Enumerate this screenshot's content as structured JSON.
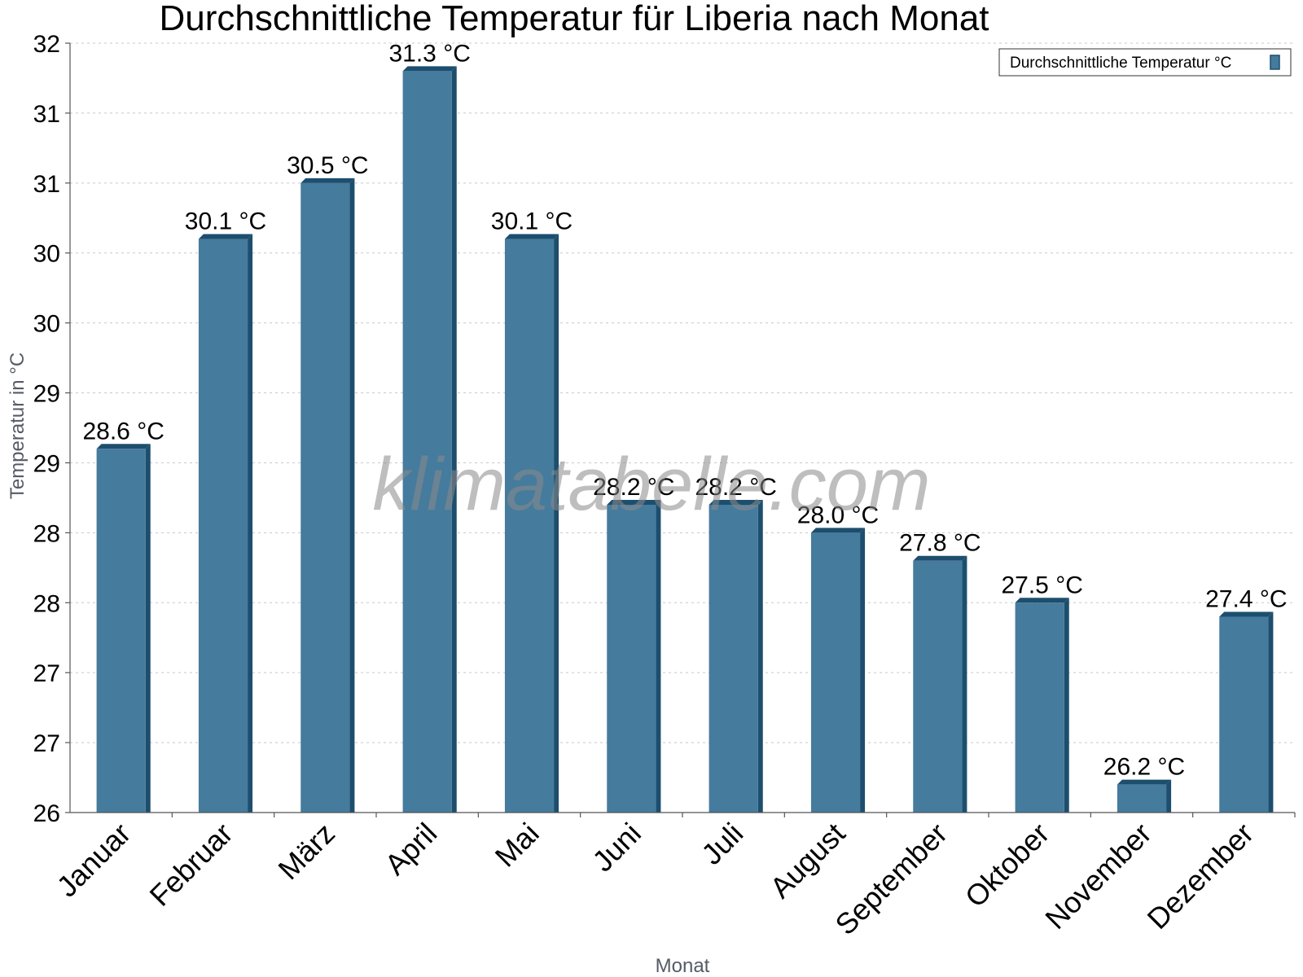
{
  "chart_data": {
    "type": "bar",
    "title": "Durchschnittliche Temperatur für Liberia nach Monat",
    "xlabel": "Monat",
    "ylabel": "Temperatur in °C",
    "categories": [
      "Januar",
      "Februar",
      "März",
      "April",
      "Mai",
      "Juni",
      "Juli",
      "August",
      "September",
      "Oktober",
      "November",
      "Dezember"
    ],
    "series": [
      {
        "name": "Durchschnittliche Temperatur °C",
        "values": [
          28.6,
          30.1,
          30.5,
          31.3,
          30.1,
          28.2,
          28.2,
          28.0,
          27.8,
          27.5,
          26.2,
          27.4
        ],
        "data_labels": [
          "28.6 °C",
          "30.1 °C",
          "30.5 °C",
          "31.3 °C",
          "30.1 °C",
          "28.2 °C",
          "28.2 °C",
          "28.0 °C",
          "27.8 °C",
          "27.5 °C",
          "26.2 °C",
          "27.4 °C"
        ]
      }
    ],
    "y_tick_labels": [
      "26",
      "27",
      "27",
      "28",
      "28",
      "29",
      "29",
      "30",
      "30",
      "31",
      "31",
      "32"
    ],
    "ylim": [
      26.0,
      31.5
    ],
    "grid": true,
    "legend_placement": "top-right",
    "colors": {
      "bar_front": "#457b9d",
      "bar_side": "#1d4e6e",
      "bar_top": "#1d4e6e"
    }
  },
  "watermark": "klimatabelle.com"
}
